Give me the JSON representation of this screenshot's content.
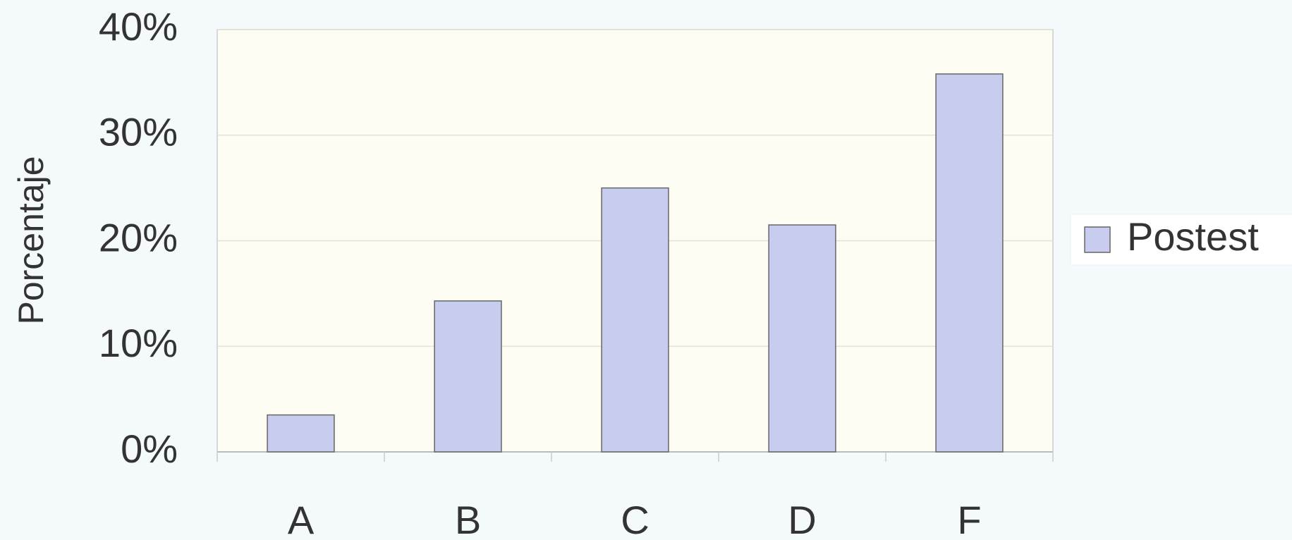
{
  "chart_data": {
    "type": "bar",
    "y_label": "Porcentaje",
    "categories": [
      "A",
      "B",
      "C",
      "D",
      "F"
    ],
    "series": [
      {
        "name": "Postest",
        "color": "#c8cdf0",
        "values": [
          3.5,
          14.3,
          25,
          21.5,
          35.8
        ]
      }
    ],
    "ylim": [
      0,
      40
    ],
    "yticks": [
      {
        "value": 0,
        "label": "0%"
      },
      {
        "value": 10,
        "label": "10%"
      },
      {
        "value": 20,
        "label": "20%"
      },
      {
        "value": 30,
        "label": "30%"
      },
      {
        "value": 40,
        "label": "40%"
      }
    ],
    "grid": true,
    "legend": "right"
  }
}
